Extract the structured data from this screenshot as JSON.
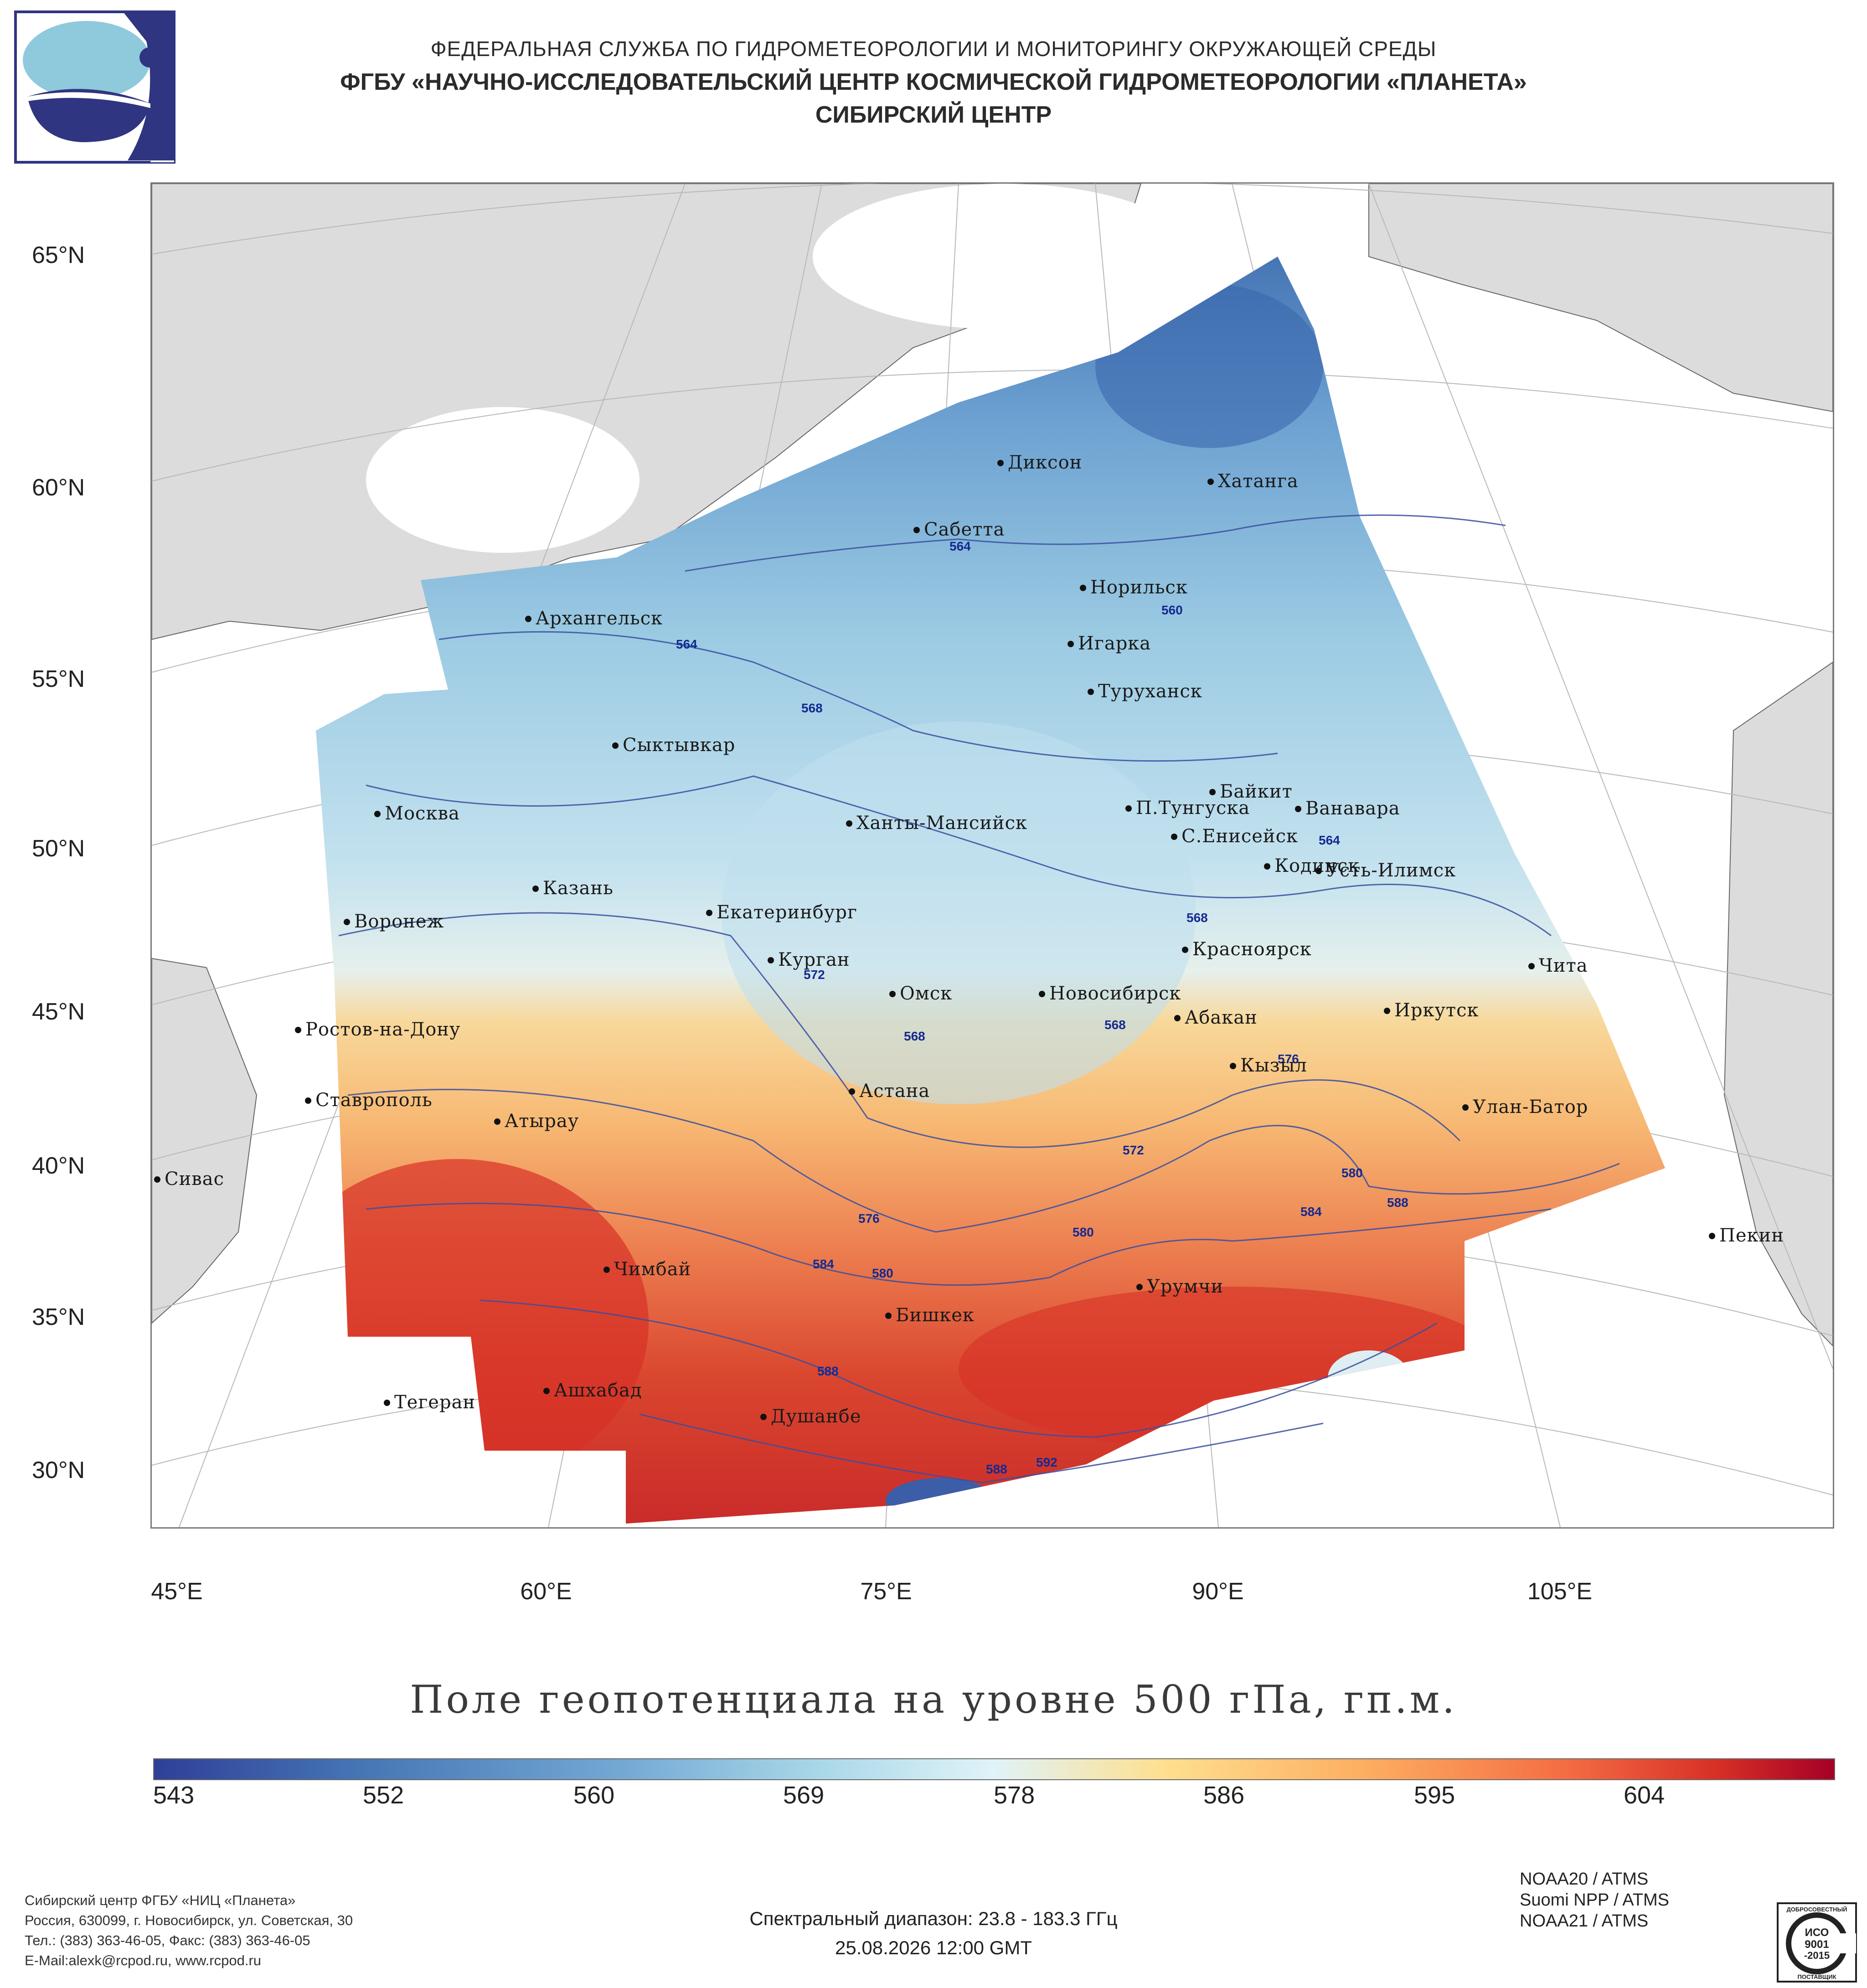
{
  "header": {
    "line1": "ФЕДЕРАЛЬНАЯ СЛУЖБА ПО ГИДРОМЕТЕОРОЛОГИИ И МОНИТОРИНГУ ОКРУЖАЮЩЕЙ СРЕДЫ",
    "line2": "ФГБУ «НАУЧНО-ИССЛЕДОВАТЕЛЬСКИЙ ЦЕНТР КОСМИЧЕСКОЙ ГИДРОМЕТЕОРОЛОГИИ «ПЛАНЕТА»",
    "line3": "СИБИРСКИЙ ЦЕНТР"
  },
  "map": {
    "lat_labels": [
      "65°N",
      "60°N",
      "55°N",
      "50°N",
      "45°N",
      "40°N",
      "35°N",
      "30°N"
    ],
    "lon_labels": [
      "45°E",
      "60°E",
      "75°E",
      "90°E",
      "105°E"
    ],
    "cities": [
      "Диксон",
      "Хатанга",
      "Сабетта",
      "Норильск",
      "Архангельск",
      "Игарка",
      "Туруханск",
      "Сыктывкар",
      "Байкит",
      "П.Тунгуска",
      "Ванавара",
      "Москва",
      "Ханты-Мансийск",
      "С.Енисейск",
      "Кодинск",
      "Усть-Илимск",
      "Казань",
      "Екатеринбург",
      "Воронеж",
      "Красноярск",
      "Курган",
      "Чита",
      "Омск",
      "Новосибирск",
      "Ростов-на-Дону",
      "Абакан",
      "Иркутск",
      "Кызыл",
      "Ставрополь",
      "Астана",
      "Улан-Батор",
      "Атырау",
      "Сивас",
      "Пекин",
      "Чимбай",
      "Урумчи",
      "Бишкек",
      "Ашхабад",
      "Тегеран",
      "Душанбе"
    ],
    "contour_labels": [
      "564",
      "564",
      "560",
      "568",
      "564",
      "568",
      "568",
      "572",
      "568",
      "572",
      "576",
      "576",
      "580",
      "584",
      "588",
      "580",
      "584",
      "580",
      "588",
      "588",
      "592"
    ]
  },
  "field_title": "Поле геопотенциала на уровне 500 гПа, гп.м.",
  "colorbar": {
    "ticks": [
      "543",
      "552",
      "560",
      "569",
      "578",
      "586",
      "595",
      "604"
    ],
    "colors": [
      "#2f3f98",
      "#4575b4",
      "#74a9d4",
      "#abd9e9",
      "#e0f3f8",
      "#fee090",
      "#fdae61",
      "#f46d43",
      "#d73027",
      "#a50026"
    ]
  },
  "footer": {
    "org_lines": [
      "Сибирский центр ФГБУ «НИЦ «Планета»",
      "Россия, 630099, г. Новосибирск, ул. Советская, 30",
      "Тел.: (383) 363-46-05, Факс: (383) 363-46-05",
      "E-Mail:alexk@rcpod.ru, www.rcpod.ru"
    ],
    "spectral": "Спектральный диапазон: 23.8 - 183.3 ГГц",
    "datetime": "25.08.2026 12:00 GMT",
    "instruments": [
      "NOAA20 / ATMS",
      "Suomi NPP / ATMS",
      "NOAA21 / ATMS"
    ],
    "cert_lines": [
      "ДОБРОСОВЕСТНЫЙ",
      "ИСО",
      "9001",
      "-2015",
      "ПОСТАВЩИК"
    ]
  }
}
